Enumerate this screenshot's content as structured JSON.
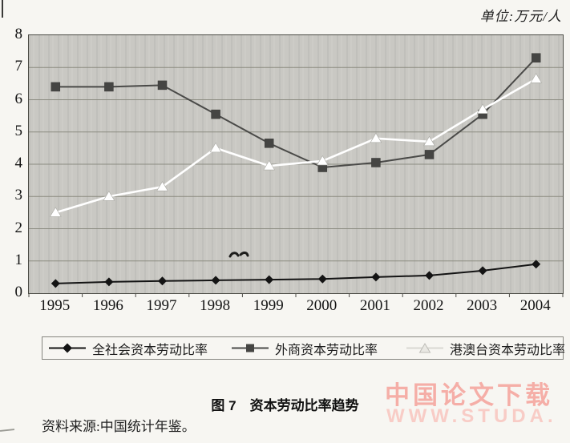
{
  "page": {
    "unit_label": "单位:万元/人",
    "caption": "图 7　资本劳动比率趋势",
    "source": "资料来源:中国统计年鉴。",
    "watermark_line1": "中国论文下载",
    "watermark_line2": "WWW.STUDA.",
    "watermark_color1": "#f5aea7",
    "watermark_color2": "#f8ccc6"
  },
  "chart_data": {
    "type": "line",
    "title": "图 7 资本劳动比率趋势",
    "unit": "万元/人",
    "categories": [
      "1995",
      "1996",
      "1997",
      "1998",
      "1999",
      "2000",
      "2001",
      "2002",
      "2003",
      "2004"
    ],
    "series": [
      {
        "name": "全社会资本劳动比率",
        "marker": "diamond",
        "line_color": "#141414",
        "marker_fill": "#141414",
        "marker_stroke": "#141414",
        "values": [
          0.3,
          0.35,
          0.38,
          0.4,
          0.42,
          0.44,
          0.5,
          0.55,
          0.7,
          0.9
        ]
      },
      {
        "name": "外商资本劳动比率",
        "marker": "square",
        "line_color": "#4a4a48",
        "marker_fill": "#454543",
        "marker_stroke": "#3a3a38",
        "values": [
          6.4,
          6.4,
          6.45,
          5.55,
          4.65,
          3.9,
          4.05,
          4.3,
          5.55,
          7.3
        ]
      },
      {
        "name": "港澳台资本劳动比率",
        "marker": "triangle",
        "line_color": "#ffffff",
        "marker_fill": "#ffffff",
        "marker_stroke": "#a9a9a3",
        "values": [
          2.5,
          3.0,
          3.3,
          4.5,
          3.95,
          4.1,
          4.8,
          4.7,
          5.7,
          6.65
        ]
      }
    ],
    "xlabel": "",
    "ylabel": "",
    "ylim": [
      0,
      8
    ],
    "yticks": [
      0,
      1,
      2,
      3,
      4,
      5,
      6,
      7,
      8
    ],
    "grid": true,
    "gridline_color": "#8b8b80",
    "legend_position": "bottom",
    "plot_background": "#c9c8c3"
  }
}
